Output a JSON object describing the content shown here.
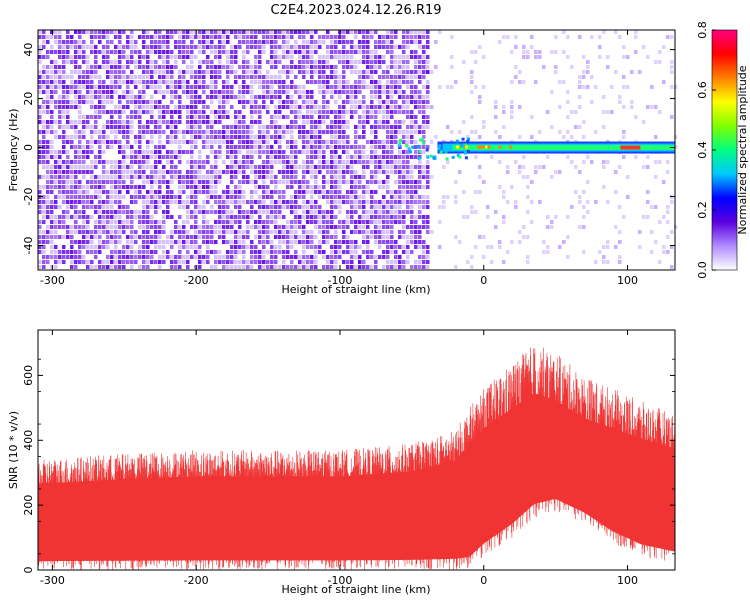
{
  "title": "C2E4.2023.024.12.26.R19",
  "chart_data": [
    {
      "type": "heatmap",
      "name": "spectrogram",
      "xlabel": "Height of straight line (km)",
      "ylabel": "Frequency (Hz)",
      "xlim": [
        -310,
        133
      ],
      "ylim": [
        -50,
        48
      ],
      "xticks": [
        -300,
        -200,
        -100,
        0,
        100
      ],
      "yticks": [
        -40,
        -20,
        0,
        20,
        40
      ],
      "signal_band": {
        "frequency": 0,
        "x_start": -60,
        "x_end": 133
      },
      "noise_boundary_x": -38,
      "colorbar": {
        "label": "Normalized spectral amplitude",
        "range": [
          0,
          0.8
        ],
        "ticks": [
          "0.0",
          "0.2",
          "0.4",
          "0.6",
          "0.8"
        ],
        "colors": [
          "#ffffff",
          "#b08cff",
          "#5a00e0",
          "#0000ff",
          "#00c8ff",
          "#00ff80",
          "#80ff00",
          "#ffff00",
          "#ff8000",
          "#ff0000",
          "#ff0080"
        ]
      }
    },
    {
      "type": "line",
      "name": "snr",
      "xlabel": "Height of straight line (km)",
      "ylabel": "SNR (10 * v/v)",
      "xlim": [
        -310,
        133
      ],
      "ylim": [
        0,
        740
      ],
      "xticks": [
        -300,
        -200,
        -100,
        0,
        100
      ],
      "yticks": [
        0,
        200,
        400,
        600
      ],
      "color": "#f03434",
      "envelope": {
        "x": [
          -310,
          -250,
          -200,
          -150,
          -100,
          -50,
          -20,
          -10,
          0,
          20,
          35,
          50,
          70,
          90,
          110,
          133
        ],
        "upper": [
          340,
          360,
          370,
          370,
          370,
          390,
          430,
          500,
          560,
          640,
          700,
          670,
          600,
          560,
          520,
          480
        ],
        "lower": [
          0,
          0,
          0,
          0,
          0,
          0,
          0,
          0,
          40,
          100,
          160,
          180,
          140,
          80,
          40,
          20
        ]
      }
    }
  ]
}
